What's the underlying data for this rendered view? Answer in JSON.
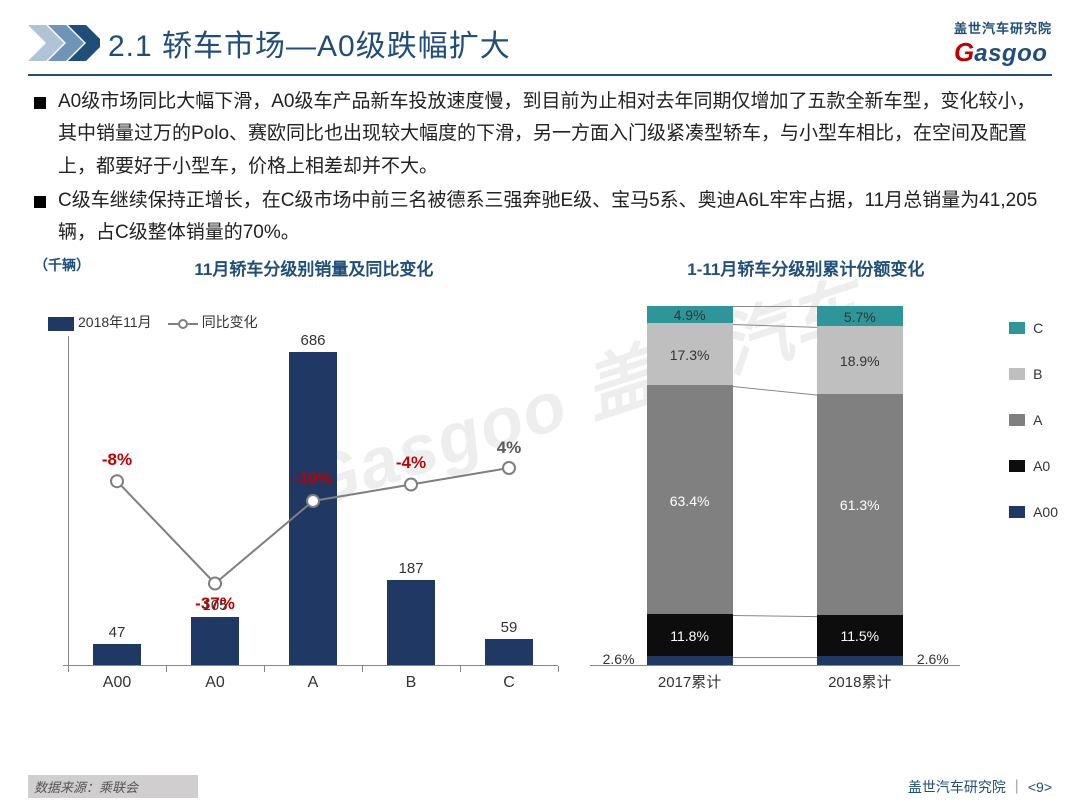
{
  "header": {
    "title": "2.1 轿车市场—A0级跌幅扩大",
    "logo_cn": "盖世汽车研究院",
    "logo_g": "G",
    "logo_rest": "asgoo"
  },
  "bullets": [
    "A0级市场同比大幅下滑，A0级车产品新车投放速度慢，到目前为止相对去年同期仅增加了五款全新车型，变化较小，其中销量过万的Polo、赛欧同比也出现较大幅度的下滑，另一方面入门级紧凑型轿车，与小型车相比，在空间及配置上，都要好于小型车，价格上相差却并不大。",
    "C级车继续保持正增长，在C级市场中前三名被德系三强奔驰E级、宝马5系、奥迪A6L牢牢占据，11月总销量为41,205辆，占C级整体销量的70%。"
  ],
  "chart1": {
    "title": "11月轿车分级别销量及同比变化",
    "unit": "（千辆）",
    "legend_bar": "2018年11月",
    "legend_line": "同比变化",
    "categories": [
      "A00",
      "A0",
      "A",
      "B",
      "C"
    ],
    "values": [
      47,
      105,
      686,
      187,
      59
    ],
    "pct": [
      "-8%",
      "-37%",
      "-10%",
      "-4%",
      "4%"
    ],
    "pct_neg": [
      true,
      true,
      true,
      true,
      false
    ],
    "ymax": 700,
    "bar_color": "#1f3864",
    "line_color": "#7f7f7f",
    "marker_border": "#7f7f7f",
    "marker_fill": "#ffffff",
    "pct_pos_y": [
      0.44,
      0.75,
      0.5,
      0.45,
      0.4
    ],
    "pct_label_offset_y": [
      -22,
      20,
      -22,
      -22,
      -20
    ]
  },
  "chart2": {
    "title": "1-11月轿车分级别累计份额变化",
    "categories": [
      "2017累计",
      "2018累计"
    ],
    "segments": [
      "A00",
      "A0",
      "A",
      "B",
      "C"
    ],
    "colors": {
      "A00": "#1f3864",
      "A0": "#0d0d0d",
      "A": "#808080",
      "B": "#bfbfbf",
      "C": "#2e9599"
    },
    "data": [
      {
        "A00": 2.6,
        "A0": 11.8,
        "A": 63.4,
        "B": 17.3,
        "C": 4.9
      },
      {
        "A00": 2.6,
        "A0": 11.5,
        "A": 61.3,
        "B": 18.9,
        "C": 5.7
      }
    ],
    "legend_order": [
      "C",
      "B",
      "A",
      "A0",
      "A00"
    ]
  },
  "footer": {
    "source": "数据来源：乘联会",
    "org": "盖世汽车研究院",
    "page": "<9>"
  },
  "watermark": "Gasgoo 盖世汽车"
}
